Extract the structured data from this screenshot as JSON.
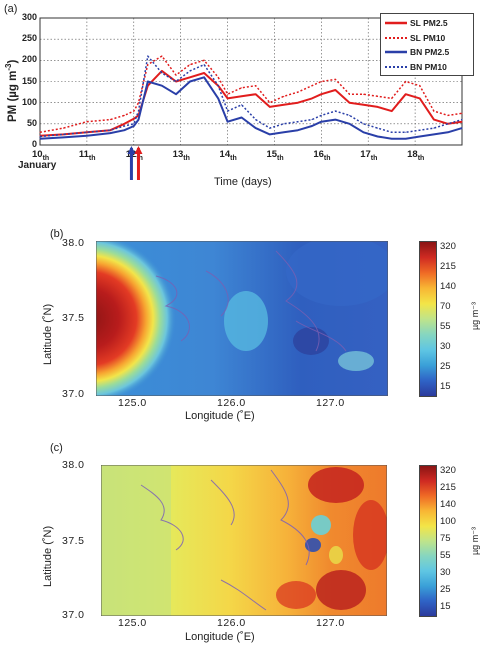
{
  "colors": {
    "sl": "#e11d1d",
    "bn": "#2a3fa8",
    "grid": "#555555",
    "colorbar": [
      "#2b3a9c",
      "#2f63c6",
      "#3aa0d8",
      "#5fc6e3",
      "#86d6c0",
      "#bfe48a",
      "#f3e547",
      "#f8b634",
      "#ef6a25",
      "#cf2a22",
      "#8a1414"
    ]
  },
  "panel_a": {
    "label": "(a)",
    "xlabel": "Time (days)",
    "ylabel_main": "PM (µg m",
    "ylabel_sup": "-3",
    "ylabel_end": ")",
    "month_label": "January",
    "x_ticks": [
      {
        "num": "10",
        "suf": "th"
      },
      {
        "num": "11",
        "suf": "th"
      },
      {
        "num": "12",
        "suf": "th"
      },
      {
        "num": "13",
        "suf": "th"
      },
      {
        "num": "14",
        "suf": "th"
      },
      {
        "num": "15",
        "suf": "th"
      },
      {
        "num": "16",
        "suf": "th"
      },
      {
        "num": "17",
        "suf": "th"
      },
      {
        "num": "18",
        "suf": "th"
      }
    ],
    "y_ticks": [
      "0",
      "50",
      "100",
      "150",
      "200",
      "250",
      "300"
    ]
  },
  "chart_data": [
    {
      "type": "line",
      "xlabel": "Time (days)",
      "ylabel": "PM (µg m-3)",
      "xlim": [
        10,
        19
      ],
      "ylim": [
        0,
        300
      ],
      "grid": true,
      "legend_position": "top-right",
      "arrows": [
        {
          "x": 11.95,
          "color": "#2a3fa8"
        },
        {
          "x": 12.1,
          "color": "#e11d1d"
        }
      ],
      "x": [
        10.0,
        10.5,
        11.0,
        11.5,
        11.8,
        12.0,
        12.1,
        12.3,
        12.6,
        12.9,
        13.2,
        13.5,
        13.8,
        14.0,
        14.3,
        14.6,
        14.9,
        15.2,
        15.5,
        15.8,
        16.0,
        16.3,
        16.6,
        16.9,
        17.2,
        17.5,
        17.8,
        18.1,
        18.4,
        18.7,
        19.0
      ],
      "series": [
        {
          "name": "SL PM2.5",
          "style": "solid",
          "color": "#e11d1d",
          "values": [
            22,
            25,
            30,
            35,
            50,
            62,
            70,
            140,
            175,
            150,
            160,
            170,
            140,
            110,
            115,
            120,
            90,
            95,
            100,
            110,
            120,
            130,
            100,
            95,
            90,
            80,
            120,
            110,
            60,
            50,
            55
          ]
        },
        {
          "name": "SL PM10",
          "style": "dotted",
          "color": "#e11d1d",
          "values": [
            30,
            40,
            55,
            60,
            70,
            80,
            100,
            190,
            210,
            165,
            190,
            200,
            160,
            120,
            135,
            140,
            100,
            115,
            125,
            140,
            150,
            155,
            120,
            120,
            115,
            110,
            150,
            140,
            80,
            70,
            75
          ]
        },
        {
          "name": "BN PM2.5",
          "style": "solid",
          "color": "#2a3fa8",
          "values": [
            15,
            18,
            22,
            28,
            35,
            45,
            60,
            150,
            140,
            120,
            150,
            160,
            110,
            55,
            65,
            40,
            25,
            30,
            35,
            45,
            55,
            60,
            50,
            30,
            20,
            15,
            15,
            20,
            25,
            30,
            40
          ]
        },
        {
          "name": "BN PM10",
          "style": "dotted",
          "color": "#2a3fa8",
          "values": [
            20,
            25,
            30,
            35,
            45,
            50,
            80,
            210,
            170,
            150,
            175,
            190,
            140,
            80,
            95,
            60,
            40,
            50,
            55,
            60,
            70,
            80,
            70,
            50,
            40,
            30,
            30,
            35,
            40,
            50,
            60
          ]
        }
      ]
    },
    {
      "type": "heatmap",
      "panel": "(b)",
      "xlabel": "Longitude (°E)",
      "ylabel": "Latitude (°N)",
      "xlim": [
        124.6,
        127.5
      ],
      "ylim": [
        37.0,
        38.0
      ],
      "x_ticks": [
        "125.0",
        "126.0",
        "127.0"
      ],
      "y_ticks": [
        "38.0",
        "37.5",
        "37.0"
      ],
      "colorbar_ticks": [
        "320",
        "215",
        "140",
        "70",
        "55",
        "30",
        "25",
        "15"
      ],
      "colorbar_unit": "µg m⁻³"
    },
    {
      "type": "heatmap",
      "panel": "(c)",
      "xlabel": "Longitude (°E)",
      "ylabel": "Latitude (°N)",
      "xlim": [
        124.6,
        127.5
      ],
      "ylim": [
        37.0,
        38.0
      ],
      "x_ticks": [
        "125.0",
        "126.0",
        "127.0"
      ],
      "y_ticks": [
        "38.0",
        "37.5",
        "37.0"
      ],
      "colorbar_ticks": [
        "320",
        "215",
        "140",
        "100",
        "75",
        "55",
        "30",
        "25",
        "15"
      ],
      "colorbar_unit": "µg m⁻³"
    }
  ],
  "panel_b": {
    "label": "(b)",
    "xlabel": "Longitude (˚E)",
    "ylabel": "Latitude (˚N)",
    "x_ticks": [
      "125.0",
      "126.0",
      "127.0"
    ],
    "y_ticks": [
      "38.0",
      "37.5",
      "37.0"
    ],
    "cb_ticks": [
      "320",
      "215",
      "140",
      "70",
      "55",
      "30",
      "25",
      "15"
    ],
    "cb_unit": "µg m⁻³"
  },
  "panel_c": {
    "label": "(c)",
    "xlabel": "Longitude (˚E)",
    "ylabel": "Latitude (˚N)",
    "x_ticks": [
      "125.0",
      "126.0",
      "127.0"
    ],
    "y_ticks": [
      "38.0",
      "37.5",
      "37.0"
    ],
    "cb_ticks": [
      "320",
      "215",
      "140",
      "100",
      "75",
      "55",
      "30",
      "25",
      "15"
    ],
    "cb_unit": "µg m⁻³"
  }
}
